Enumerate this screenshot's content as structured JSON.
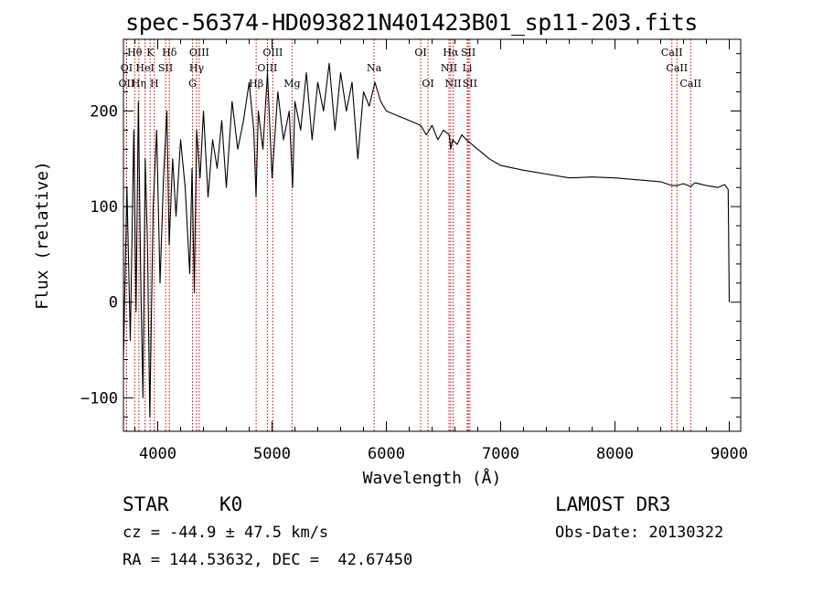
{
  "chart_data": {
    "type": "line",
    "title": "spec-56374-HD093821N401423B01_sp11-203.fits",
    "xlabel": "Wavelength (Å)",
    "ylabel": "Flux (relative)",
    "xlim": [
      3700,
      9100
    ],
    "ylim": [
      -135,
      275
    ],
    "xticks": [
      4000,
      5000,
      6000,
      7000,
      8000,
      9000
    ],
    "yticks": [
      -100,
      0,
      100,
      200
    ],
    "series": [
      {
        "name": "flux",
        "x": [
          3700,
          3730,
          3760,
          3790,
          3810,
          3830,
          3850,
          3870,
          3890,
          3910,
          3930,
          3960,
          3990,
          4020,
          4050,
          4080,
          4100,
          4130,
          4160,
          4200,
          4240,
          4280,
          4300,
          4320,
          4340,
          4370,
          4400,
          4440,
          4480,
          4520,
          4560,
          4600,
          4650,
          4700,
          4750,
          4800,
          4840,
          4860,
          4880,
          4920,
          4960,
          5000,
          5050,
          5100,
          5150,
          5180,
          5200,
          5250,
          5300,
          5350,
          5400,
          5450,
          5500,
          5550,
          5600,
          5650,
          5700,
          5750,
          5800,
          5850,
          5900,
          5950,
          6000,
          6100,
          6200,
          6300,
          6350,
          6400,
          6450,
          6500,
          6550,
          6563,
          6580,
          6620,
          6660,
          6700,
          6800,
          6900,
          7000,
          7200,
          7400,
          7600,
          7800,
          8000,
          8200,
          8400,
          8498,
          8542,
          8600,
          8662,
          8700,
          8800,
          8900,
          8960,
          8990,
          9000
        ],
        "y": [
          -60,
          120,
          -40,
          180,
          -10,
          210,
          30,
          -100,
          150,
          60,
          -120,
          100,
          180,
          20,
          130,
          200,
          60,
          150,
          90,
          170,
          120,
          30,
          140,
          10,
          180,
          130,
          200,
          110,
          170,
          140,
          190,
          120,
          210,
          160,
          190,
          230,
          180,
          110,
          200,
          160,
          240,
          130,
          220,
          170,
          200,
          120,
          210,
          180,
          240,
          170,
          230,
          200,
          250,
          180,
          240,
          200,
          230,
          150,
          220,
          205,
          230,
          210,
          200,
          195,
          190,
          185,
          175,
          185,
          170,
          180,
          175,
          160,
          170,
          165,
          175,
          170,
          160,
          150,
          143,
          138,
          134,
          130,
          131,
          130,
          128,
          126,
          122,
          122,
          124,
          121,
          125,
          122,
          120,
          123,
          118,
          0
        ]
      }
    ],
    "line_labels": [
      {
        "text": "Hθ",
        "wl": 3798,
        "row": 0
      },
      {
        "text": "K",
        "wl": 3934,
        "row": 0
      },
      {
        "text": "Hδ",
        "wl": 4102,
        "row": 0
      },
      {
        "text": "OIII",
        "wl": 4363,
        "row": 0
      },
      {
        "text": "OIII",
        "wl": 5007,
        "row": 0
      },
      {
        "text": "OI",
        "wl": 6300,
        "row": 0
      },
      {
        "text": "Hα",
        "wl": 6563,
        "row": 0
      },
      {
        "text": "SII",
        "wl": 6717,
        "row": 0
      },
      {
        "text": "CaII",
        "wl": 8498,
        "row": 0
      },
      {
        "text": "OI",
        "wl": 3727,
        "row": 1
      },
      {
        "text": "HeI",
        "wl": 3889,
        "row": 1
      },
      {
        "text": "SII",
        "wl": 4069,
        "row": 1
      },
      {
        "text": "Hγ",
        "wl": 4340,
        "row": 1
      },
      {
        "text": "OIII",
        "wl": 4959,
        "row": 1
      },
      {
        "text": "Na",
        "wl": 5893,
        "row": 1
      },
      {
        "text": "NII",
        "wl": 6548,
        "row": 1
      },
      {
        "text": "Li",
        "wl": 6708,
        "row": 1
      },
      {
        "text": "CaII",
        "wl": 8542,
        "row": 1
      },
      {
        "text": "OII",
        "wl": 3727,
        "row": 2
      },
      {
        "text": "Hη",
        "wl": 3835,
        "row": 2
      },
      {
        "text": "H",
        "wl": 3970,
        "row": 2
      },
      {
        "text": "G",
        "wl": 4304,
        "row": 2
      },
      {
        "text": "Hβ",
        "wl": 4861,
        "row": 2
      },
      {
        "text": "Mg",
        "wl": 5175,
        "row": 2
      },
      {
        "text": "OI",
        "wl": 6364,
        "row": 2
      },
      {
        "text": "NII",
        "wl": 6584,
        "row": 2
      },
      {
        "text": "SII",
        "wl": 6731,
        "row": 2
      },
      {
        "text": "CaII",
        "wl": 8662,
        "row": 2
      }
    ],
    "line_marker_color": "#cc0000"
  },
  "info": {
    "class_label": "STAR",
    "subclass_label": "K0",
    "survey": "LAMOST DR3",
    "cz": "cz = -44.9 ± 47.5 km/s",
    "obs_date": "Obs-Date: 20130322",
    "coords": "RA = 144.53632, DEC =  42.67450"
  }
}
